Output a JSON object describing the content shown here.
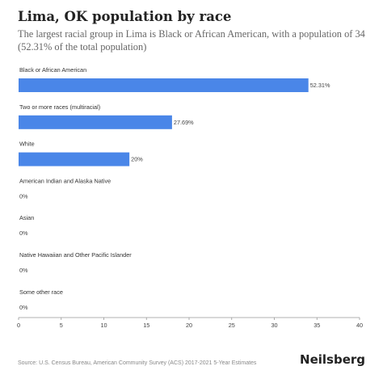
{
  "header": {
    "title": "Lima, OK population by race",
    "subtitle": "The largest racial group in Lima is Black or African American, with a population of 34 (52.31% of the total population)"
  },
  "footer": {
    "source": "Source: U.S. Census Bureau, American Community Survey (ACS) 2017-2021 5-Year Estimates",
    "brand": "Neilsberg"
  },
  "chart_data": {
    "type": "bar",
    "orientation": "horizontal",
    "categories": [
      "Black or African American",
      "Two or more races (multiracial)",
      "White",
      "American Indian and Alaska Native",
      "Asian",
      "Native Hawaiian and Other Pacific Islander",
      "Some other race"
    ],
    "values": [
      34,
      18,
      13,
      0,
      0,
      0,
      0
    ],
    "data_labels": [
      "52.31%",
      "27.69%",
      "20%",
      "0%",
      "0%",
      "0%",
      "0%"
    ],
    "xlim": [
      0,
      40
    ],
    "xticks": [
      0,
      5,
      10,
      15,
      20,
      25,
      30,
      35,
      40
    ],
    "bar_color": "#4a86e8",
    "grid": false
  }
}
